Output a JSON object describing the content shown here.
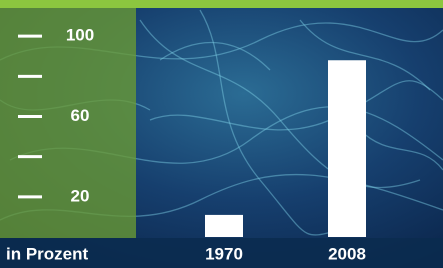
{
  "chart_data": {
    "type": "bar",
    "categories": [
      "1970",
      "2008"
    ],
    "values": [
      11,
      88
    ],
    "color": "#ffffff",
    "ylim": [
      0,
      118
    ],
    "yticks": [
      20,
      60,
      100
    ],
    "minor_yticks": [
      40,
      80
    ],
    "y_axis_label": "in Prozent"
  }
}
